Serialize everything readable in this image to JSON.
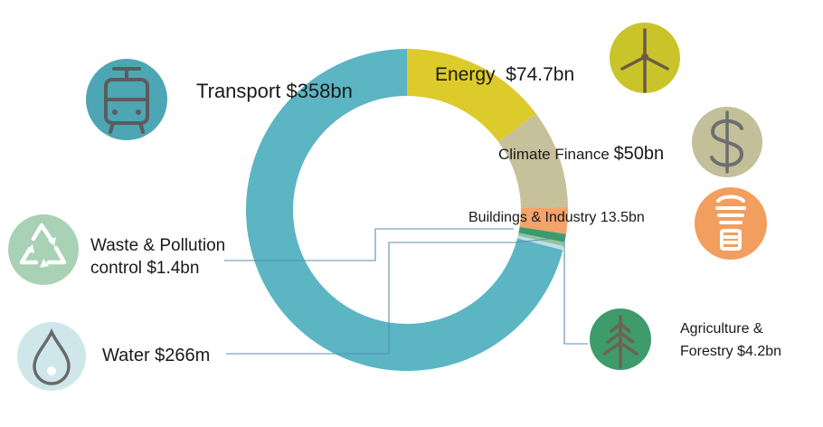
{
  "chart_data": {
    "type": "donut",
    "unit": "USD",
    "slices": [
      {
        "label": "Transport",
        "amount_text": "$358bn",
        "value_bn": 358,
        "color": "#5bb5c3"
      },
      {
        "label": "Energy",
        "amount_text": "$74.7bn",
        "value_bn": 74.7,
        "color": "#dccb2a"
      },
      {
        "label": "Climate Finance",
        "amount_text": "$50bn",
        "value_bn": 50,
        "color": "#c6c09b"
      },
      {
        "label": "Buildings & Industry",
        "amount_text": "13.5bn",
        "value_bn": 13.5,
        "color": "#f4a36a"
      },
      {
        "label": "Agriculture &",
        "label2": "Forestry",
        "amount_text": "$4.2bn",
        "value_bn": 4.2,
        "color": "#3d9a6b"
      },
      {
        "label": "Waste & Pollution",
        "label2": "control",
        "amount_text": "$1.4bn",
        "value_bn": 1.4,
        "color": "#8fc3a5"
      },
      {
        "label": "Water",
        "amount_text": "$266m",
        "value_bn": 0.266,
        "color": "#bfdde4"
      }
    ]
  },
  "icons": [
    {
      "name": "tram-icon",
      "color": "#4ca6b3"
    },
    {
      "name": "wind-turbine-icon",
      "color": "#c9c42a"
    },
    {
      "name": "dollar-icon",
      "color": "#c3bf98"
    },
    {
      "name": "lightbulb-icon",
      "color": "#f29e5f"
    },
    {
      "name": "recycle-icon",
      "color": "#a8d1b6"
    },
    {
      "name": "pine-tree-icon",
      "color": "#3e9b6b"
    },
    {
      "name": "water-drop-icon",
      "color": "#cfe7ea"
    }
  ]
}
